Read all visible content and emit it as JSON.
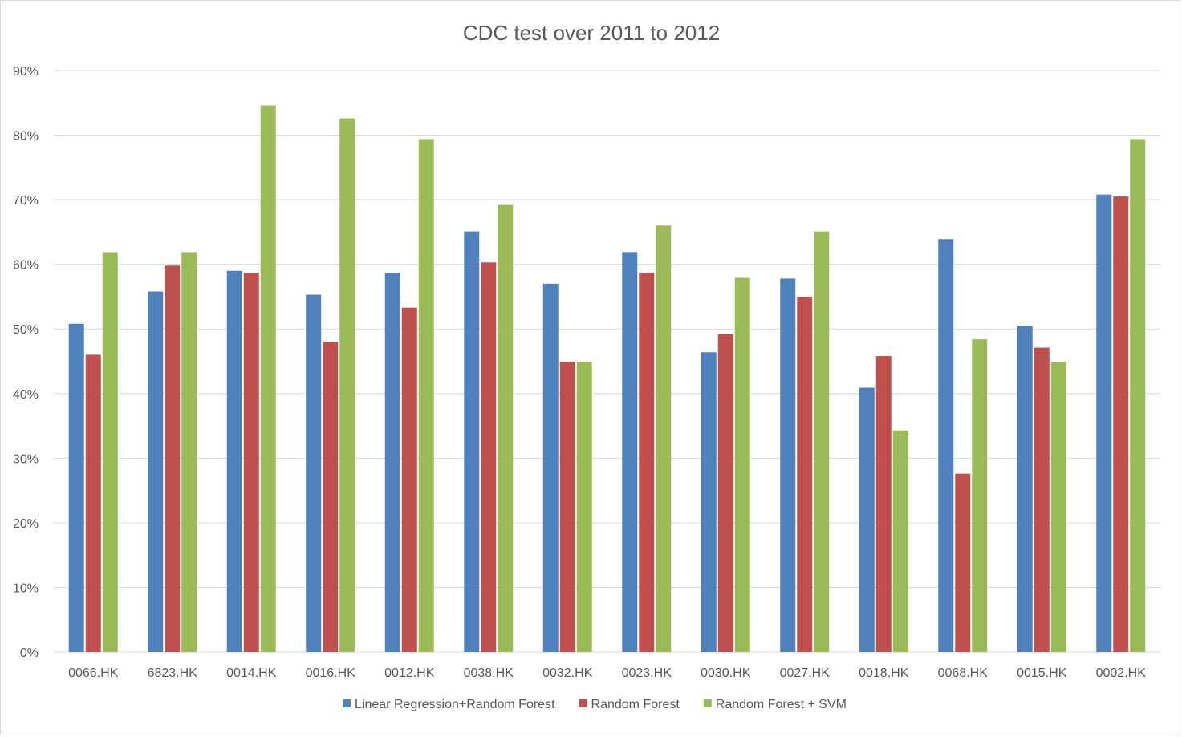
{
  "chart_data": {
    "type": "bar",
    "title": "CDC test over 2011 to 2012",
    "xlabel": "",
    "ylabel": "",
    "ylim": [
      0,
      90
    ],
    "y_ticks": [
      0,
      10,
      20,
      30,
      40,
      50,
      60,
      70,
      80,
      90
    ],
    "y_tick_labels": [
      "0%",
      "10%",
      "20%",
      "30%",
      "40%",
      "50%",
      "60%",
      "70%",
      "80%",
      "90%"
    ],
    "grid": true,
    "legend_position": "bottom",
    "categories": [
      "0066.HK",
      "6823.HK",
      "0014.HK",
      "0016.HK",
      "0012.HK",
      "0038.HK",
      "0032.HK",
      "0023.HK",
      "0030.HK",
      "0027.HK",
      "0018.HK",
      "0068.HK",
      "0015.HK",
      "0002.HK"
    ],
    "series": [
      {
        "name": "Linear Regression+Random Forest",
        "color": "#4f81bd",
        "values": [
          50.8,
          55.8,
          59.0,
          55.3,
          58.7,
          65.1,
          57.0,
          61.9,
          46.4,
          57.8,
          40.9,
          63.9,
          50.5,
          70.8
        ]
      },
      {
        "name": "Random Forest",
        "color": "#c0504d",
        "values": [
          46.0,
          59.8,
          58.7,
          48.0,
          53.3,
          60.3,
          44.9,
          58.7,
          49.2,
          55.0,
          45.8,
          27.6,
          47.1,
          70.5
        ]
      },
      {
        "name": "Random Forest + SVM",
        "color": "#9bbb59",
        "values": [
          61.9,
          61.9,
          84.6,
          82.6,
          79.4,
          69.2,
          44.9,
          66.0,
          57.9,
          65.1,
          34.3,
          48.4,
          44.9,
          79.4
        ]
      }
    ]
  }
}
